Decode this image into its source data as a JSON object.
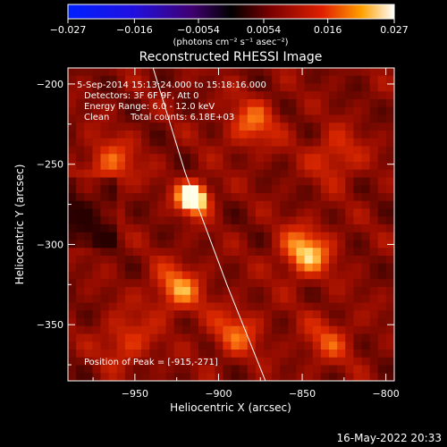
{
  "colorbar": {
    "tick_labels": [
      "−0.027",
      "−0.016",
      "−0.0054",
      "0.0054",
      "0.016",
      "0.027"
    ],
    "tick_values": [
      -0.027,
      -0.016,
      -0.0054,
      0.0054,
      0.016,
      0.027
    ],
    "range": [
      -0.027,
      0.027
    ],
    "unit_label": "(photons cm⁻² s⁻¹ asec⁻²)"
  },
  "chart_data": {
    "type": "heatmap",
    "title": "Reconstructed RHESSI Image",
    "xlabel": "Heliocentric X (arcsec)",
    "ylabel": "Heliocentric Y (arcsec)",
    "xlim": [
      -990,
      -795
    ],
    "ylim": [
      -385,
      -190
    ],
    "x_ticks": [
      -950,
      -900,
      -850,
      -800
    ],
    "x_tick_labels": [
      "−950",
      "−900",
      "−850",
      "−800"
    ],
    "y_ticks": [
      -200,
      -250,
      -300,
      -350
    ],
    "y_tick_labels": [
      "−200",
      "−250",
      "−300",
      "−350"
    ],
    "peak": {
      "x": -915,
      "y": -271
    },
    "sources": [
      {
        "x": -915,
        "y": -271,
        "intensity": 1.0
      },
      {
        "x": -848,
        "y": -305,
        "intensity": 0.62
      },
      {
        "x": -925,
        "y": -328,
        "intensity": 0.5
      },
      {
        "x": -965,
        "y": -250,
        "intensity": 0.42
      },
      {
        "x": -880,
        "y": -225,
        "intensity": 0.42
      },
      {
        "x": -890,
        "y": -355,
        "intensity": 0.4
      },
      {
        "x": -955,
        "y": -360,
        "intensity": 0.35
      },
      {
        "x": -830,
        "y": -245,
        "intensity": 0.35
      },
      {
        "x": -835,
        "y": -360,
        "intensity": 0.32
      }
    ],
    "limb": [
      {
        "x": -940,
        "y": -187
      },
      {
        "x": -920,
        "y": -255
      },
      {
        "x": -895,
        "y": -325
      },
      {
        "x": -872,
        "y": -385
      }
    ],
    "annotations": [
      "5-Sep-2014 15:13:24.000 to 15:18:16.000",
      "Detectors: 3F 6F 9F, Att 0",
      "Energy Range: 6.0 - 12.0 keV",
      "Clean",
      "Total counts: 6.18E+03",
      "Position of Peak = [-915,-271]"
    ]
  },
  "footer": {
    "date": "16-May-2022 20:33"
  }
}
